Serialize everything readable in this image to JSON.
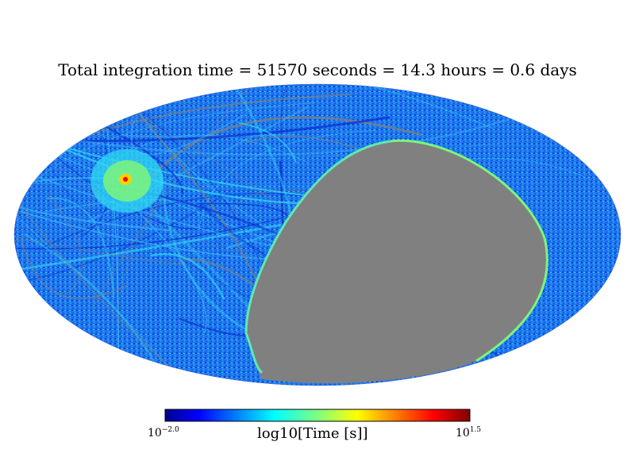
{
  "chart_data": {
    "type": "heatmap",
    "projection": "mollweide",
    "title": "Total integration time = 51570 seconds = 14.3 hours = 0.6 days",
    "colorbar": {
      "label": "log10[Time [s]]",
      "min_base": "10",
      "min_exp": "−2.0",
      "max_base": "10",
      "max_exp": "1.5",
      "range_log10": [
        -2.0,
        1.5
      ],
      "colormap": "jet"
    },
    "background_value_color": "#808080",
    "unobserved_region": "large grey region on the right half of the sky map",
    "hotspot": {
      "description": "bright concentrated exposure peak",
      "color": "#ff0000"
    }
  },
  "colors": {
    "map_base": "#1e6cf0",
    "map_deep": "#0a2bd0",
    "map_cyan": "#2fd9f2",
    "map_green": "#7cf57a",
    "grey": "#808080"
  }
}
